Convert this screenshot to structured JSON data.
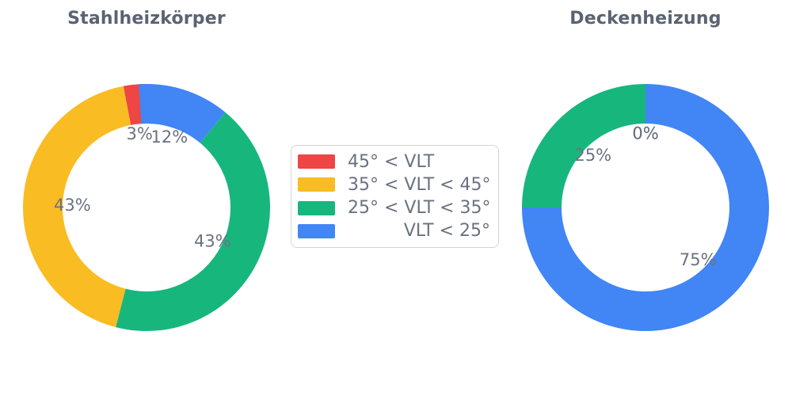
{
  "figure": {
    "background": "#ffffff",
    "title_color": "#5a6372",
    "label_color": "#6b7280"
  },
  "palette": {
    "red": "#ee4545",
    "yellow": "#f9bc23",
    "green": "#17b67d",
    "blue": "#4285f4"
  },
  "legend": {
    "border_color": "#d5d5d5",
    "items": [
      {
        "label": "45° < VLT",
        "color": "#ee4545"
      },
      {
        "label": "35° < VLT < 45°",
        "color": "#f9bc23"
      },
      {
        "label": "25° < VLT < 35°",
        "color": "#17b67d"
      },
      {
        "label": "VLT < 25°",
        "color": "#4285f4"
      }
    ]
  },
  "chart_data": [
    {
      "type": "pie",
      "subtype": "donut",
      "title": "Stahlheizkörper",
      "categories": [
        "45° < VLT",
        "35° < VLT < 45°",
        "25° < VLT < 35°",
        "VLT < 25°"
      ],
      "values": [
        3,
        43,
        43,
        12
      ],
      "labels": [
        "3%",
        "43%",
        "43%",
        "12%"
      ],
      "colors": [
        "#ee4545",
        "#f9bc23",
        "#17b67d",
        "#4285f4"
      ],
      "start_angle": 90,
      "direction": "counterclockwise",
      "hole_ratio": 0.68,
      "label_radius_ratio": 0.6
    },
    {
      "type": "pie",
      "subtype": "donut",
      "title": "Deckenheizung",
      "categories": [
        "45° < VLT",
        "35° < VLT < 45°",
        "25° < VLT < 35°",
        "VLT < 25°"
      ],
      "values": [
        0,
        0,
        25,
        75
      ],
      "labels": [
        "0%",
        "0%",
        "25%",
        "75%"
      ],
      "colors": [
        "#ee4545",
        "#f9bc23",
        "#17b67d",
        "#4285f4"
      ],
      "start_angle": 90,
      "direction": "counterclockwise",
      "hole_ratio": 0.68,
      "label_radius_ratio": 0.6
    }
  ]
}
